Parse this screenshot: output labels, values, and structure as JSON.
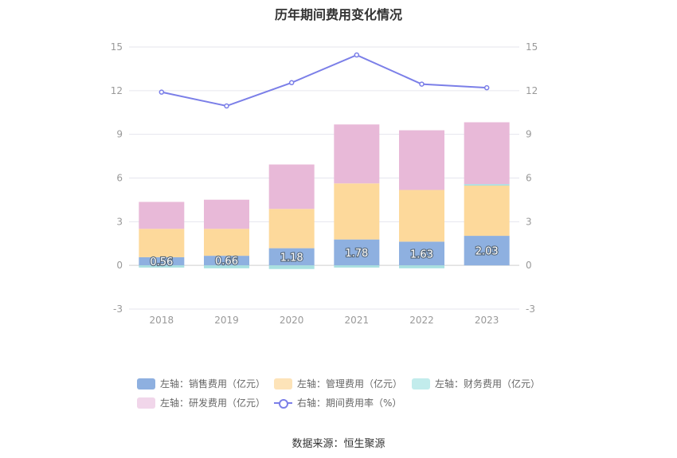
{
  "title": "历年期间费用变化情况",
  "source": "数据来源：恒生聚源",
  "chart_data": {
    "type": "bar",
    "stacked": true,
    "categories": [
      "2018",
      "2019",
      "2020",
      "2021",
      "2022",
      "2023"
    ],
    "left_axis": {
      "ylim": [
        -3,
        15
      ],
      "ticks": [
        "-3",
        "0",
        "3",
        "6",
        "9",
        "12",
        "15"
      ]
    },
    "right_axis": {
      "ylim": [
        -3,
        15
      ],
      "ticks": [
        "-3",
        "0",
        "3",
        "6",
        "9",
        "12",
        "15"
      ]
    },
    "series": [
      {
        "name": "左轴：销售费用（亿元）",
        "axis": "left",
        "kind": "bar",
        "color": "#8eb0e0",
        "values": [
          0.56,
          0.66,
          1.18,
          1.78,
          1.63,
          2.03
        ],
        "labels": [
          "0.56",
          "0.66",
          "1.18",
          "1.78",
          "1.63",
          "2.03"
        ]
      },
      {
        "name": "左轴：管理费用（亿元）",
        "axis": "left",
        "kind": "bar",
        "color": "#fdd99b",
        "values": [
          1.95,
          1.85,
          2.7,
          3.85,
          3.55,
          3.45
        ]
      },
      {
        "name": "左轴：财务费用（亿元）",
        "axis": "left",
        "kind": "bar",
        "color": "#a8e0e0",
        "values": [
          -0.15,
          -0.2,
          -0.25,
          -0.15,
          -0.2,
          0.1
        ]
      },
      {
        "name": "左轴：研发费用（亿元）",
        "axis": "left",
        "kind": "bar",
        "color": "#e8b9d8",
        "values": [
          1.85,
          2.0,
          3.05,
          4.05,
          4.1,
          4.25
        ]
      },
      {
        "name": "右轴：期间费用率（%）",
        "axis": "right",
        "kind": "line",
        "color": "#7b7fe8",
        "values": [
          11.9,
          10.95,
          12.55,
          14.45,
          12.45,
          12.2
        ]
      }
    ],
    "grid": true,
    "legend_position": "bottom"
  }
}
